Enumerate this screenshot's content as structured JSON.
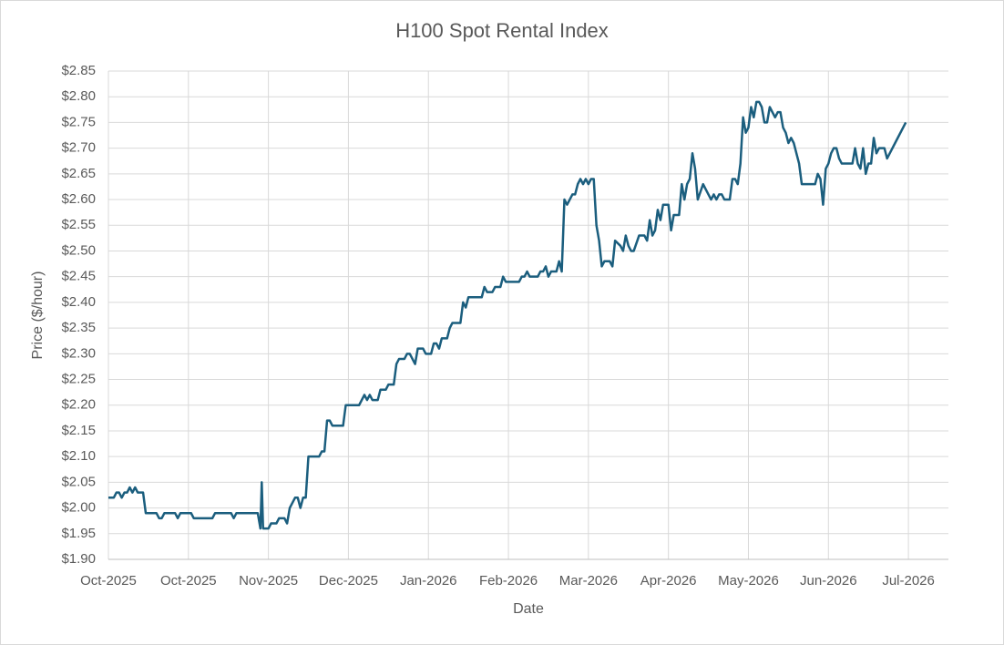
{
  "chart_data": {
    "type": "line",
    "title": "H100 Spot Rental Index",
    "x_label": "Date",
    "y_label": "Price ($/hour)",
    "color": "#1b5e7e",
    "grid": true,
    "xlim": [
      0,
      315
    ],
    "xticks": [
      {
        "value": 0,
        "label": "Oct-2025"
      },
      {
        "value": 30,
        "label": "Oct-2025"
      },
      {
        "value": 60,
        "label": "Nov-2025"
      },
      {
        "value": 90,
        "label": "Dec-2025"
      },
      {
        "value": 120,
        "label": "Jan-2026"
      },
      {
        "value": 150,
        "label": "Feb-2026"
      },
      {
        "value": 180,
        "label": "Mar-2026"
      },
      {
        "value": 210,
        "label": "Apr-2026"
      },
      {
        "value": 240,
        "label": "May-2026"
      },
      {
        "value": 270,
        "label": "Jun-2026"
      },
      {
        "value": 300,
        "label": "Jul-2026"
      }
    ],
    "ylim": [
      1.9,
      2.85
    ],
    "yticks": [
      {
        "value": 1.9,
        "label": "$1.90"
      },
      {
        "value": 1.95,
        "label": "$1.95"
      },
      {
        "value": 2.0,
        "label": "$2.00"
      },
      {
        "value": 2.05,
        "label": "$2.05"
      },
      {
        "value": 2.1,
        "label": "$2.10"
      },
      {
        "value": 2.15,
        "label": "$2.15"
      },
      {
        "value": 2.2,
        "label": "$2.20"
      },
      {
        "value": 2.25,
        "label": "$2.25"
      },
      {
        "value": 2.3,
        "label": "$2.30"
      },
      {
        "value": 2.35,
        "label": "$2.35"
      },
      {
        "value": 2.4,
        "label": "$2.40"
      },
      {
        "value": 2.45,
        "label": "$2.45"
      },
      {
        "value": 2.5,
        "label": "$2.50"
      },
      {
        "value": 2.55,
        "label": "$2.55"
      },
      {
        "value": 2.6,
        "label": "$2.60"
      },
      {
        "value": 2.65,
        "label": "$2.65"
      },
      {
        "value": 2.7,
        "label": "$2.70"
      },
      {
        "value": 2.75,
        "label": "$2.75"
      },
      {
        "value": 2.8,
        "label": "$2.80"
      },
      {
        "value": 2.85,
        "label": "$2.85"
      }
    ],
    "x": [
      0,
      2,
      3,
      4,
      5,
      6,
      7,
      8,
      9,
      10,
      11,
      13,
      14,
      18,
      19,
      20,
      21,
      25,
      26,
      27,
      31,
      32,
      39,
      40,
      46,
      47,
      48,
      56,
      57,
      57.5,
      58,
      60,
      61,
      63,
      64,
      66,
      67,
      68,
      70,
      71,
      72,
      73,
      74,
      75,
      79,
      80,
      81,
      82,
      83,
      84,
      88,
      89,
      94,
      96,
      97,
      98,
      99,
      101,
      102,
      104,
      105,
      107,
      108,
      109,
      111,
      112,
      113,
      115,
      116,
      118,
      119,
      121,
      122,
      123,
      124,
      125,
      127,
      128,
      129,
      132,
      133,
      134,
      135,
      140,
      141,
      142,
      144,
      145,
      147,
      148,
      149,
      154,
      155,
      156,
      157,
      158,
      161,
      162,
      163,
      164,
      165,
      166,
      168,
      169,
      170,
      171,
      172,
      174,
      175,
      176,
      177,
      178,
      179,
      180,
      181,
      182,
      183,
      184,
      185,
      186,
      188,
      189,
      190,
      192,
      193,
      194,
      195,
      196,
      197,
      199,
      201,
      202,
      203,
      204,
      205,
      206,
      207,
      208,
      210,
      211,
      212,
      214,
      215,
      216,
      217,
      218,
      219,
      220,
      221,
      223,
      224,
      226,
      227,
      228,
      229,
      230,
      231,
      233,
      234,
      235,
      236,
      237,
      238,
      239,
      240,
      241,
      242,
      243,
      244,
      245,
      246,
      247,
      248,
      249,
      250,
      251,
      252,
      253,
      254,
      255,
      256,
      257,
      258,
      259,
      260,
      265,
      266,
      267,
      268,
      269,
      270,
      271,
      272,
      273,
      274,
      275,
      279,
      280,
      281,
      282,
      283,
      284,
      285,
      286,
      287,
      288,
      289,
      291,
      292,
      293,
      295,
      299
    ],
    "values": [
      2.02,
      2.02,
      2.03,
      2.03,
      2.02,
      2.03,
      2.03,
      2.04,
      2.03,
      2.04,
      2.03,
      2.03,
      1.99,
      1.99,
      1.98,
      1.98,
      1.99,
      1.99,
      1.98,
      1.99,
      1.99,
      1.98,
      1.98,
      1.99,
      1.99,
      1.98,
      1.99,
      1.99,
      1.96,
      2.05,
      1.96,
      1.96,
      1.97,
      1.97,
      1.98,
      1.98,
      1.97,
      2.0,
      2.02,
      2.02,
      2.0,
      2.02,
      2.02,
      2.1,
      2.1,
      2.11,
      2.11,
      2.17,
      2.17,
      2.16,
      2.16,
      2.2,
      2.2,
      2.22,
      2.21,
      2.22,
      2.21,
      2.21,
      2.23,
      2.23,
      2.24,
      2.24,
      2.28,
      2.29,
      2.29,
      2.3,
      2.3,
      2.28,
      2.31,
      2.31,
      2.3,
      2.3,
      2.32,
      2.32,
      2.31,
      2.33,
      2.33,
      2.35,
      2.36,
      2.36,
      2.4,
      2.39,
      2.41,
      2.41,
      2.43,
      2.42,
      2.42,
      2.43,
      2.43,
      2.45,
      2.44,
      2.44,
      2.45,
      2.45,
      2.46,
      2.45,
      2.45,
      2.46,
      2.46,
      2.47,
      2.45,
      2.46,
      2.46,
      2.48,
      2.46,
      2.6,
      2.59,
      2.61,
      2.61,
      2.63,
      2.64,
      2.63,
      2.64,
      2.63,
      2.64,
      2.64,
      2.55,
      2.52,
      2.47,
      2.48,
      2.48,
      2.47,
      2.52,
      2.51,
      2.5,
      2.53,
      2.51,
      2.5,
      2.5,
      2.53,
      2.53,
      2.52,
      2.56,
      2.53,
      2.54,
      2.58,
      2.56,
      2.59,
      2.59,
      2.54,
      2.57,
      2.57,
      2.63,
      2.6,
      2.63,
      2.64,
      2.69,
      2.66,
      2.6,
      2.63,
      2.62,
      2.6,
      2.61,
      2.6,
      2.61,
      2.61,
      2.6,
      2.6,
      2.64,
      2.64,
      2.63,
      2.67,
      2.76,
      2.73,
      2.74,
      2.78,
      2.76,
      2.79,
      2.79,
      2.78,
      2.75,
      2.75,
      2.78,
      2.77,
      2.76,
      2.77,
      2.77,
      2.74,
      2.73,
      2.71,
      2.72,
      2.71,
      2.69,
      2.67,
      2.63,
      2.63,
      2.65,
      2.64,
      2.59,
      2.66,
      2.67,
      2.69,
      2.7,
      2.7,
      2.68,
      2.67,
      2.67,
      2.7,
      2.67,
      2.66,
      2.7,
      2.65,
      2.67,
      2.67,
      2.72,
      2.69,
      2.7,
      2.7,
      2.68,
      2.69,
      2.71,
      2.75
    ]
  }
}
